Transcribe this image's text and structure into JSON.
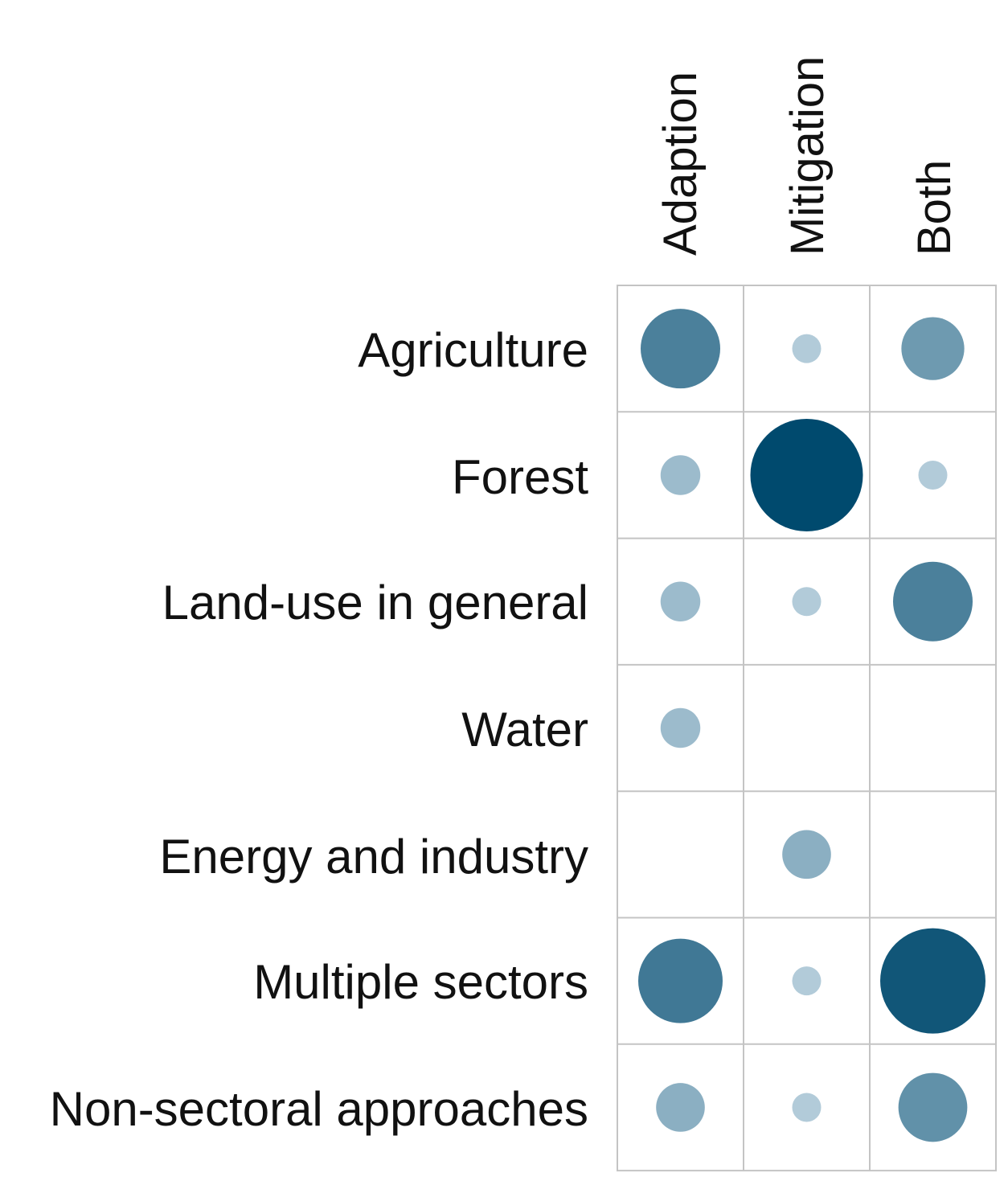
{
  "chart_data": {
    "type": "bubble-matrix",
    "title": "",
    "columns": [
      "Adaption",
      "Mitigation",
      "Both"
    ],
    "rows": [
      "Agriculture",
      "Forest",
      "Land-use in general",
      "Water",
      "Energy and industry",
      "Multiple sectors",
      "Non-sectoral approaches"
    ],
    "values": [
      [
        8,
        1,
        5
      ],
      [
        2,
        16,
        1
      ],
      [
        2,
        1,
        8
      ],
      [
        2,
        0,
        0
      ],
      [
        0,
        3,
        0
      ],
      [
        9,
        1,
        14
      ],
      [
        3,
        1,
        6
      ]
    ],
    "value_units": "relative (estimated from bubble size)",
    "colors": {
      "low": "#dbe9f2",
      "high": "#004a6e",
      "grid": "#c4c4c4",
      "text": "#111111"
    }
  }
}
